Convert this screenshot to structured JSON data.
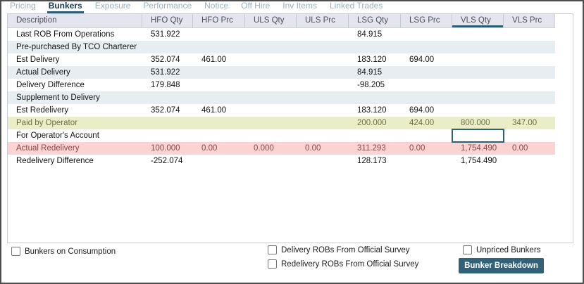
{
  "tabs": [
    {
      "label": "Pricing",
      "active": false
    },
    {
      "label": "Bunkers",
      "active": true
    },
    {
      "label": "Exposure",
      "active": false
    },
    {
      "label": "Performance",
      "active": false
    },
    {
      "label": "Notice",
      "active": false
    },
    {
      "label": "Off Hire",
      "active": false
    },
    {
      "label": "Inv Items",
      "active": false
    },
    {
      "label": "Linked Trades",
      "active": false
    }
  ],
  "table": {
    "columns": [
      "Description",
      "HFO Qty",
      "HFO Prc",
      "ULS Qty",
      "ULS Prc",
      "LSG Qty",
      "LSG Prc",
      "VLS Qty",
      "VLS Prc"
    ],
    "selected_column": "VLS Qty",
    "focused_cell": {
      "row_index": 8,
      "column": "VLS Qty",
      "value": ""
    },
    "rows": [
      {
        "label": "Last ROB From Operations",
        "style": "plain",
        "values": [
          "531.922",
          "",
          "",
          "",
          "84.915",
          "",
          "",
          ""
        ]
      },
      {
        "label": "Pre-purchased By TCO Charterer",
        "style": "stripe",
        "values": [
          "",
          "",
          "",
          "",
          "",
          "",
          "",
          ""
        ]
      },
      {
        "label": "Est Delivery",
        "style": "plain",
        "values": [
          "352.074",
          "461.00",
          "",
          "",
          "183.120",
          "694.00",
          "",
          ""
        ]
      },
      {
        "label": "Actual Delivery",
        "style": "stripe",
        "values": [
          "531.922",
          "",
          "",
          "",
          "84.915",
          "",
          "",
          ""
        ]
      },
      {
        "label": "Delivery Difference",
        "style": "plain",
        "values": [
          "179.848",
          "",
          "",
          "",
          "-98.205",
          "",
          "",
          ""
        ]
      },
      {
        "label": "Supplement to Delivery",
        "style": "stripe",
        "values": [
          "",
          "",
          "",
          "",
          "",
          "",
          "",
          ""
        ]
      },
      {
        "label": "Est Redelivery",
        "style": "plain",
        "values": [
          "352.074",
          "461.00",
          "",
          "",
          "183.120",
          "694.00",
          "",
          ""
        ]
      },
      {
        "label": "Paid by Operator",
        "style": "green",
        "values": [
          "",
          "",
          "",
          "",
          "200.000",
          "424.00",
          "800.000",
          "347.00"
        ]
      },
      {
        "label": "For Operator's Account",
        "style": "plain",
        "values": [
          "",
          "",
          "",
          "",
          "",
          "",
          "",
          ""
        ]
      },
      {
        "label": "Actual Redelivery",
        "style": "pink",
        "values": [
          "100.000",
          "0.00",
          "0.000",
          "0.00",
          "311.293",
          "0.00",
          "1,754.490",
          "0.00"
        ]
      },
      {
        "label": "Redelivery Difference",
        "style": "plain",
        "values": [
          "-252.074",
          "",
          "",
          "",
          "128.173",
          "",
          "1,754.490",
          ""
        ]
      }
    ]
  },
  "footer": {
    "bunkers_on_consumption": {
      "label": "Bunkers on Consumption",
      "checked": false
    },
    "delivery_robs": {
      "label": "Delivery ROBs From Official Survey",
      "checked": false
    },
    "redelivery_robs": {
      "label": "Redelivery ROBs From Official Survey",
      "checked": false
    },
    "unpriced_bunkers": {
      "label": "Unpriced Bunkers",
      "checked": false
    },
    "bunker_breakdown_button": "Bunker Breakdown"
  },
  "colors": {
    "accent": "#2d5f75",
    "tab_inactive_text": "#9bb1bd",
    "tab_active_text": "#16384c",
    "header_bg": "#e4e5ef",
    "stripe_row_bg": "#e7eef2",
    "green_row_bg": "#e9eec9",
    "green_row_text": "#6e6e45",
    "pink_row_bg": "#fbd3d3",
    "pink_row_text": "#8a4646",
    "button_bg": "#31627a"
  }
}
